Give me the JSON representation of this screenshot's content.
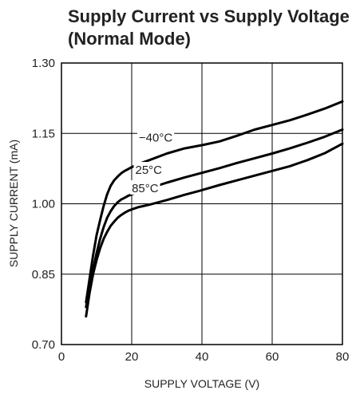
{
  "chart_data": {
    "type": "line",
    "title": [
      "Supply Current vs Supply Voltage",
      "(Normal Mode)"
    ],
    "xlabel": "SUPPLY VOLTAGE (V)",
    "ylabel": "SUPPLY CURRENT (mA)",
    "xlim": [
      0,
      80
    ],
    "ylim": [
      0.7,
      1.3
    ],
    "xticks": [
      "0",
      "20",
      "40",
      "60",
      "80"
    ],
    "yticks": [
      "0.70",
      "0.85",
      "1.00",
      "1.15",
      "1.30"
    ],
    "grid": true,
    "series": [
      {
        "name": "−40°C",
        "x": [
          7,
          8,
          9,
          10,
          11,
          12,
          13,
          14,
          15,
          16,
          17,
          18,
          19,
          20,
          22,
          25,
          30,
          35,
          40,
          45,
          50,
          55,
          60,
          65,
          70,
          75,
          80
        ],
        "y": [
          0.79,
          0.84,
          0.89,
          0.933,
          0.965,
          0.995,
          1.02,
          1.038,
          1.05,
          1.058,
          1.065,
          1.07,
          1.074,
          1.078,
          1.085,
          1.093,
          1.107,
          1.118,
          1.125,
          1.133,
          1.145,
          1.158,
          1.168,
          1.178,
          1.19,
          1.203,
          1.218
        ]
      },
      {
        "name": "25°C",
        "x": [
          7,
          8,
          9,
          10,
          11,
          12,
          13,
          14,
          15,
          16,
          17,
          18,
          19,
          20,
          22,
          25,
          30,
          35,
          40,
          45,
          50,
          55,
          60,
          65,
          70,
          75,
          80
        ],
        "y": [
          0.78,
          0.82,
          0.86,
          0.895,
          0.925,
          0.95,
          0.97,
          0.984,
          0.995,
          1.003,
          1.009,
          1.013,
          1.017,
          1.02,
          1.026,
          1.033,
          1.045,
          1.056,
          1.066,
          1.076,
          1.087,
          1.097,
          1.107,
          1.118,
          1.13,
          1.143,
          1.158
        ]
      },
      {
        "name": "85°C",
        "x": [
          7,
          8,
          9,
          10,
          11,
          12,
          13,
          14,
          15,
          16,
          17,
          18,
          19,
          20,
          22,
          25,
          30,
          35,
          40,
          45,
          50,
          55,
          60,
          65,
          70,
          75,
          80
        ],
        "y": [
          0.76,
          0.81,
          0.85,
          0.88,
          0.905,
          0.925,
          0.94,
          0.953,
          0.962,
          0.97,
          0.976,
          0.981,
          0.985,
          0.988,
          0.993,
          0.998,
          1.008,
          1.019,
          1.029,
          1.04,
          1.05,
          1.06,
          1.07,
          1.08,
          1.093,
          1.108,
          1.128
        ]
      }
    ]
  }
}
